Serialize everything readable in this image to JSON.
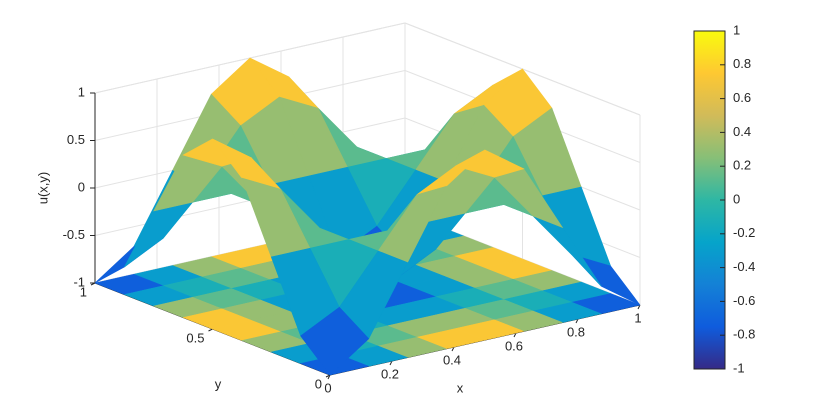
{
  "chart_data": {
    "type": "surface",
    "xlabel": "x",
    "ylabel": "y",
    "zlabel": "u(x,y)",
    "x": [
      0,
      0.125,
      0.25,
      0.375,
      0.5,
      0.625,
      0.75,
      0.875,
      1
    ],
    "y": [
      0,
      0.125,
      0.25,
      0.375,
      0.5,
      0.625,
      0.75,
      0.875,
      1
    ],
    "z": [
      [
        -1,
        -0.71,
        0,
        0.71,
        1,
        0.71,
        0,
        -0.71,
        -1
      ],
      [
        -0.71,
        -0.5,
        0,
        0.5,
        0.71,
        0.5,
        0,
        -0.5,
        -0.71
      ],
      [
        0,
        0,
        0,
        0,
        0,
        0,
        0,
        0,
        0
      ],
      [
        0.71,
        0.5,
        0,
        -0.5,
        -0.71,
        -0.5,
        0,
        0.5,
        0.71
      ],
      [
        1,
        0.71,
        0,
        -0.71,
        -1,
        -0.71,
        0,
        0.71,
        1
      ],
      [
        0.71,
        0.5,
        0,
        -0.5,
        -0.71,
        -0.5,
        0,
        0.5,
        0.71
      ],
      [
        0,
        0,
        0,
        0,
        0,
        0,
        0,
        0,
        0
      ],
      [
        -0.71,
        -0.5,
        0,
        0.5,
        0.71,
        0.5,
        0,
        -0.5,
        -0.71
      ],
      [
        -1,
        -0.71,
        0,
        0.71,
        1,
        0.71,
        0,
        -0.71,
        -1
      ]
    ],
    "xlim": [
      0,
      1
    ],
    "ylim": [
      0,
      1
    ],
    "zlim": [
      -1,
      1
    ],
    "xticks": [
      0,
      0.2,
      0.4,
      0.6,
      0.8,
      1
    ],
    "yticks": [
      0,
      0.5,
      1
    ],
    "zticks": [
      -1,
      -0.5,
      0,
      0.5,
      1
    ],
    "colorbar_ticks": [
      -1,
      -0.8,
      -0.6,
      -0.4,
      -0.2,
      0,
      0.2,
      0.4,
      0.6,
      0.8,
      1
    ],
    "colormap": [
      "#352a87",
      "#0f5cdd",
      "#1481d6",
      "#06a4ca",
      "#2eb7a4",
      "#87bf77",
      "#d1bb59",
      "#fec832",
      "#f9fb0e"
    ],
    "grid": true,
    "floor_contour": true
  }
}
